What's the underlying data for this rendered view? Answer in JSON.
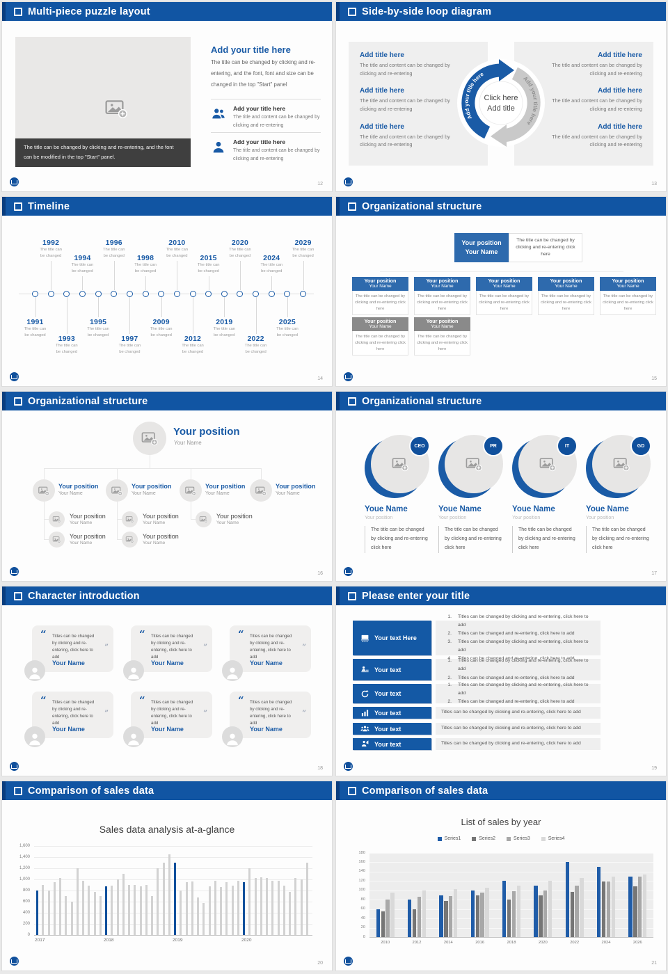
{
  "slides": {
    "s1": {
      "page": "12",
      "title": "Multi-piece puzzle layout",
      "image_caption": "The title can be changed by clicking and re-entering, and the font can be modified in the top \"Start\" panel.",
      "right": {
        "heading": "Add your title here",
        "body": "The title can be changed by clicking and re-entering, and the font, font and size can be changed in the top \"Start\" panel",
        "items": [
          {
            "title": "Add your title here",
            "desc": "The title and content can be changed by clicking and re-entering"
          },
          {
            "title": "Add your title here",
            "desc": "The title and content can be changed by clicking and re-entering"
          }
        ]
      }
    },
    "s2": {
      "page": "13",
      "title": "Side-by-side loop diagram",
      "left_items": [
        {
          "title": "Add title here",
          "desc": "The title and content can be changed by clicking and re-entering"
        },
        {
          "title": "Add title here",
          "desc": "The title and content can be changed by clicking and re-entering"
        },
        {
          "title": "Add title here",
          "desc": "The title and content can be changed by clicking and re-entering"
        }
      ],
      "right_items": [
        {
          "title": "Add title here",
          "desc": "The title and content can be changed by clicking and re-entering"
        },
        {
          "title": "Add title here",
          "desc": "The title and content can be changed by clicking and re-entering"
        },
        {
          "title": "Add title here",
          "desc": "The title and content can be changed by clicking and re-entering"
        }
      ],
      "center_line1": "Click here",
      "center_line2": "Add title",
      "arc_text_left": "Add your title here",
      "arc_text_right": "Add your title here"
    },
    "s3": {
      "page": "14",
      "title": "Timeline",
      "caption_line1": "The title can",
      "caption_line2": "be changed",
      "years": [
        {
          "year": "1991",
          "side": "below",
          "level": 1
        },
        {
          "year": "1992",
          "side": "above",
          "level": 1
        },
        {
          "year": "1993",
          "side": "below",
          "level": 2
        },
        {
          "year": "1994",
          "side": "above",
          "level": 2
        },
        {
          "year": "1995",
          "side": "below",
          "level": 1
        },
        {
          "year": "1996",
          "side": "above",
          "level": 1
        },
        {
          "year": "1997",
          "side": "below",
          "level": 2
        },
        {
          "year": "1998",
          "side": "above",
          "level": 2
        },
        {
          "year": "2009",
          "side": "below",
          "level": 1
        },
        {
          "year": "2010",
          "side": "above",
          "level": 1
        },
        {
          "year": "2012",
          "side": "below",
          "level": 2
        },
        {
          "year": "2015",
          "side": "above",
          "level": 2
        },
        {
          "year": "2019",
          "side": "below",
          "level": 1
        },
        {
          "year": "2020",
          "side": "above",
          "level": 1
        },
        {
          "year": "2022",
          "side": "below",
          "level": 2
        },
        {
          "year": "2024",
          "side": "above",
          "level": 2
        },
        {
          "year": "2025",
          "side": "below",
          "level": 1
        },
        {
          "year": "2029",
          "side": "above",
          "level": 1
        }
      ]
    },
    "s4": {
      "page": "15",
      "title": "Organizational structure",
      "root_position": "Your position",
      "root_name": "Your Name",
      "root_note": "The title can be changed by clicking and re-entering click here",
      "card_body": "The title can be changed by clicking and re-entering click here",
      "cards": [
        {
          "position": "Your position",
          "name": "Your Name",
          "color": "blue"
        },
        {
          "position": "Your position",
          "name": "Your Name",
          "color": "blue"
        },
        {
          "position": "Your position",
          "name": "Your Name",
          "color": "blue"
        },
        {
          "position": "Your position",
          "name": "Your Name",
          "color": "blue"
        },
        {
          "position": "Your position",
          "name": "Your Name",
          "color": "blue"
        },
        {
          "position": "Your position",
          "name": "Your Name",
          "color": "gray"
        },
        {
          "position": "Your position",
          "name": "Your Name",
          "color": "gray"
        }
      ]
    },
    "s5": {
      "page": "16",
      "title": "Organizational structure",
      "root_position": "Your position",
      "root_name": "Your Name",
      "columns": [
        {
          "position": "Your position",
          "name": "Your Name",
          "children": [
            {
              "position": "Your position",
              "name": "Your Name"
            },
            {
              "position": "Your position",
              "name": "Your Name"
            }
          ]
        },
        {
          "position": "Your position",
          "name": "Your Name",
          "children": [
            {
              "position": "Your position",
              "name": "Your Name"
            },
            {
              "position": "Your position",
              "name": "Your Name"
            }
          ]
        },
        {
          "position": "Your position",
          "name": "Your Name",
          "children": [
            {
              "position": "Your position",
              "name": "Your Name"
            }
          ]
        },
        {
          "position": "Your position",
          "name": "Your Name",
          "children": []
        }
      ]
    },
    "s6": {
      "page": "17",
      "title": "Organizational structure",
      "members": [
        {
          "badge": "CEO",
          "name": "Youe Name",
          "position": "Your position",
          "desc": "The title can be changed by clicking and re-entering click here"
        },
        {
          "badge": "PR",
          "name": "Youe Name",
          "position": "Your position",
          "desc": "The title can be changed by clicking and re-entering click here"
        },
        {
          "badge": "IT",
          "name": "Youe Name",
          "position": "Your position",
          "desc": "The title can be changed by clicking and re-entering click here"
        },
        {
          "badge": "GD",
          "name": "Youe Name",
          "position": "Your position",
          "desc": "The title can be changed by clicking and re-entering click here"
        }
      ]
    },
    "s7": {
      "page": "18",
      "title": "Character introduction",
      "open_quote": "“",
      "close_quote": "”",
      "cards": [
        {
          "quote": "Titles can be changed by clicking and re-entering, click here to add",
          "name": "Your Name"
        },
        {
          "quote": "Titles can be changed by clicking and re-entering, click here to add",
          "name": "Your Name"
        },
        {
          "quote": "Titles can be changed by clicking and re-entering, click here to add",
          "name": "Your Name"
        },
        {
          "quote": "Titles can be changed by clicking and re-entering, click here to add",
          "name": "Your Name"
        },
        {
          "quote": "Titles can be changed by clicking and re-entering, click here to add",
          "name": "Your Name"
        },
        {
          "quote": "Titles can be changed by clicking and re-entering, click here to add",
          "name": "Your Name"
        }
      ]
    },
    "s8": {
      "page": "19",
      "title": "Please enter your title",
      "rows": [
        {
          "label": "Your text Here",
          "icon": "presentation-icon",
          "numbered": true,
          "items": [
            "Titles can be changed by clicking and re-entering, click here to add",
            "Titles can be changed and re-entering, click here to add",
            "Titles can be changed by clicking and re-entering, click here to add",
            "Titles can be changed and re-entering, click here to add"
          ]
        },
        {
          "label": "Your text",
          "icon": "person-desk-icon",
          "numbered": true,
          "items": [
            "Titles can be changed by clicking and re-entering, click here to add",
            "Titles can be changed and re-entering, click here to add"
          ]
        },
        {
          "label": "Your text",
          "icon": "refresh-icon",
          "numbered": true,
          "items": [
            "Titles can be changed by clicking and re-entering, click here to add",
            "Titles can be changed and re-entering, click here to add"
          ]
        },
        {
          "label": "Your text",
          "icon": "bar-chart-icon",
          "numbered": false,
          "items": [
            "Titles can be changed by clicking and re-entering, click here to add"
          ]
        },
        {
          "label": "Your text",
          "icon": "team-icon",
          "numbered": false,
          "items": [
            "Titles can be changed by clicking and re-entering, click here to add"
          ]
        },
        {
          "label": "Your text",
          "icon": "speaker-icon",
          "numbered": false,
          "items": [
            "Titles can be changed by clicking and re-entering, click here to add"
          ]
        }
      ]
    },
    "s9": {
      "page": "20",
      "title": "Comparison of sales data"
    },
    "s10": {
      "page": "21",
      "title": "Comparison of sales data"
    }
  },
  "chart_data": [
    {
      "type": "bar",
      "title": "Sales data analysis at-a-glance",
      "xlabel": "",
      "ylabel": "",
      "groups": [
        "2017",
        "2018",
        "2019",
        "2020"
      ],
      "bars_per_group": 12,
      "values": [
        [
          800,
          900,
          800,
          950,
          1020,
          700,
          600,
          1200,
          980,
          890,
          780,
          700
        ],
        [
          880,
          890,
          1000,
          1100,
          900,
          900,
          880,
          900,
          700,
          1200,
          1300,
          1450
        ],
        [
          1300,
          800,
          950,
          960,
          670,
          580,
          870,
          980,
          860,
          950,
          890,
          980
        ],
        [
          950,
          1200,
          1020,
          1040,
          1020,
          980,
          970,
          890,
          780,
          1020,
          1000,
          1300
        ]
      ],
      "bar_color": "#d2d2d2",
      "group_start_color": "#10509c",
      "ylim": [
        0,
        1600
      ],
      "yticks": [
        "0",
        "200",
        "400",
        "600",
        "800",
        "1,000",
        "1,200",
        "1,400",
        "1,600"
      ],
      "grid": true,
      "legend_position": "none"
    },
    {
      "type": "bar",
      "title": "List of sales by year",
      "xlabel": "",
      "ylabel": "",
      "categories": [
        "2010",
        "2012",
        "2014",
        "2016",
        "2018",
        "2020",
        "2022",
        "2024",
        "2026"
      ],
      "series": [
        {
          "name": "Series1",
          "color": "#1f5ca8",
          "values": [
            60,
            80,
            90,
            100,
            120,
            110,
            160,
            150,
            130
          ]
        },
        {
          "name": "Series2",
          "color": "#767676",
          "values": [
            55,
            60,
            77,
            90,
            80,
            90,
            96,
            119,
            109
          ]
        },
        {
          "name": "Series3",
          "color": "#a8a8a8",
          "values": [
            80,
            87,
            88,
            95,
            98,
            100,
            110,
            119,
            129
          ]
        },
        {
          "name": "Series4",
          "color": "#d9d9d9",
          "values": [
            95,
            99,
            102,
            105,
            110,
            120,
            126,
            129,
            134
          ]
        }
      ],
      "ylim": [
        0,
        180
      ],
      "yticks": [
        "0",
        "20",
        "40",
        "60",
        "80",
        "100",
        "120",
        "140",
        "160",
        "180"
      ],
      "grid": true,
      "legend_position": "top"
    }
  ],
  "colors": {
    "header_blue": "#1155a3",
    "accent_blue": "#1a5ba6",
    "panel_gray": "#efefef",
    "caption_dark": "#3f3f3f",
    "gray_header": "#8a8a8a"
  }
}
